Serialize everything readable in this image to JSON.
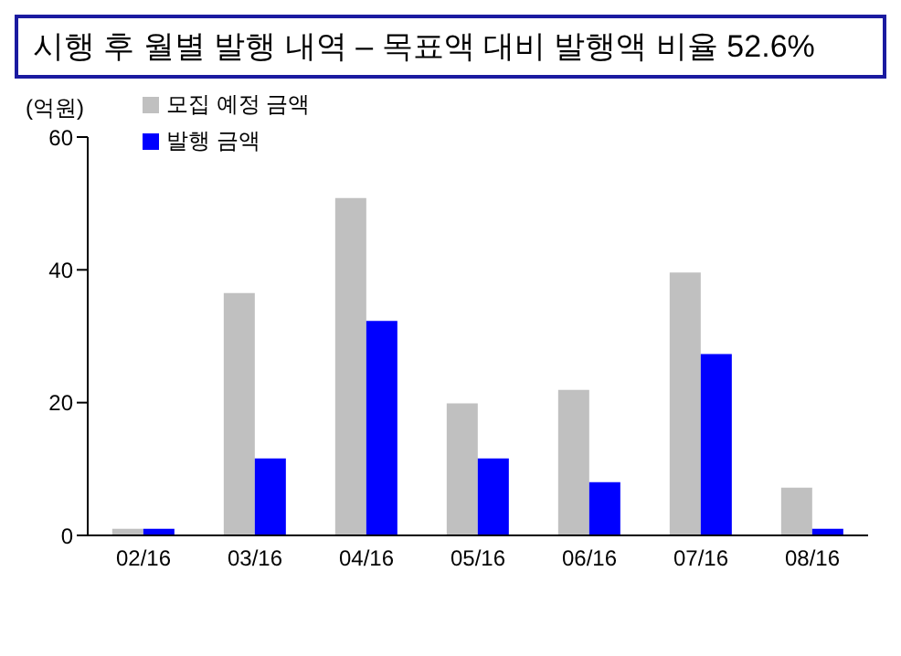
{
  "chart_data": {
    "type": "bar",
    "title": "시행 후 월별 발행 내역 – 목표액 대비 발행액 비율 52.6%",
    "ylabel": "(억원)",
    "categories": [
      "02/16",
      "03/16",
      "04/16",
      "05/16",
      "06/16",
      "07/16",
      "08/16"
    ],
    "series": [
      {
        "name": "모집 예정 금액",
        "color": "#c0c0c0",
        "values": [
          1.0,
          36.5,
          50.8,
          19.9,
          21.9,
          39.6,
          7.2
        ]
      },
      {
        "name": "발행 금액",
        "color": "#0000ff",
        "values": [
          1.0,
          11.6,
          32.3,
          11.6,
          8.0,
          27.3,
          1.0
        ]
      }
    ],
    "ylim": [
      0,
      60
    ],
    "yticks": [
      0,
      20,
      40,
      60
    ],
    "grid": false,
    "legend": "top left"
  }
}
